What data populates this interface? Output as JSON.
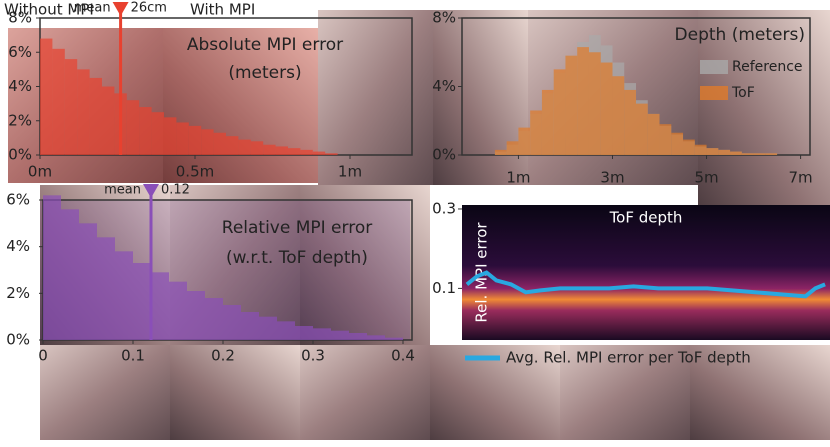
{
  "labels": {
    "without_mpi": "Without MPI",
    "with_mpi": "With MPI"
  },
  "chart_data": [
    {
      "type": "histogram",
      "title": "Absolute MPI error",
      "subtitle": "(meters)",
      "color": "#e8412f",
      "bins": [
        0,
        0.04,
        0.08,
        0.12,
        0.16,
        0.2,
        0.24,
        0.28,
        0.32,
        0.36,
        0.4,
        0.44,
        0.48,
        0.52,
        0.56,
        0.6,
        0.64,
        0.68,
        0.72,
        0.76,
        0.8,
        0.84,
        0.88,
        0.92,
        0.96
      ],
      "values": [
        6.8,
        6.2,
        5.6,
        5.0,
        4.5,
        4.0,
        3.6,
        3.2,
        2.8,
        2.5,
        2.2,
        1.9,
        1.7,
        1.5,
        1.3,
        1.1,
        0.9,
        0.8,
        0.6,
        0.5,
        0.4,
        0.3,
        0.2,
        0.1
      ],
      "xlim": [
        0,
        1.2
      ],
      "ylim": [
        0,
        8
      ],
      "xticks": [
        {
          "value": 0,
          "label": "0m"
        },
        {
          "value": 0.5,
          "label": "0.5m"
        },
        {
          "value": 1,
          "label": "1m"
        }
      ],
      "yticks": [
        {
          "value": 0,
          "label": "0%"
        },
        {
          "value": 2,
          "label": "2%"
        },
        {
          "value": 4,
          "label": "4%"
        },
        {
          "value": 6,
          "label": "6%"
        },
        {
          "value": 8,
          "label": "8%"
        }
      ],
      "mean_text": "mean",
      "mean": {
        "value": 0.26,
        "label": "26cm"
      }
    },
    {
      "type": "histogram",
      "title": "Depth (meters)",
      "bins": [
        0.5,
        0.75,
        1,
        1.25,
        1.5,
        1.75,
        2,
        2.25,
        2.5,
        2.75,
        3,
        3.25,
        3.5,
        3.75,
        4,
        4.25,
        4.5,
        4.75,
        5,
        5.25,
        5.5,
        5.75,
        6,
        6.25,
        6.5
      ],
      "series": [
        {
          "name": "Reference",
          "color": "#a9a9a9",
          "values": [
            0.2,
            0.6,
            1.4,
            2.4,
            3.6,
            4.8,
            5.8,
            6.6,
            7.0,
            6.4,
            5.4,
            4.2,
            3.2,
            2.4,
            1.7,
            1.2,
            0.8,
            0.5,
            0.4,
            0.3,
            0.2,
            0.1,
            0.1,
            0.1
          ]
        },
        {
          "name": "ToF",
          "color": "#e07b2a",
          "values": [
            0.3,
            0.8,
            1.6,
            2.6,
            3.8,
            5.0,
            5.8,
            6.3,
            6.0,
            5.4,
            4.6,
            3.8,
            3.0,
            2.4,
            1.8,
            1.3,
            0.9,
            0.6,
            0.4,
            0.3,
            0.2,
            0.1,
            0.1,
            0.1
          ]
        }
      ],
      "xlim": [
        -0.2,
        7.2
      ],
      "ylim": [
        0,
        8
      ],
      "xticks": [
        {
          "value": 1,
          "label": "1m"
        },
        {
          "value": 3,
          "label": "3m"
        },
        {
          "value": 5,
          "label": "5m"
        },
        {
          "value": 7,
          "label": "7m"
        }
      ],
      "yticks": [
        {
          "value": 0,
          "label": "0%"
        },
        {
          "value": 4,
          "label": "4%"
        },
        {
          "value": 8,
          "label": "8%"
        }
      ]
    },
    {
      "type": "histogram",
      "title": "Relative MPI error",
      "subtitle": "(w.r.t. ToF depth)",
      "color": "#8a4fb8",
      "bins": [
        0,
        0.02,
        0.04,
        0.06,
        0.08,
        0.1,
        0.12,
        0.14,
        0.16,
        0.18,
        0.2,
        0.22,
        0.24,
        0.26,
        0.28,
        0.3,
        0.32,
        0.34,
        0.36,
        0.38,
        0.4
      ],
      "values": [
        6.2,
        5.6,
        5.0,
        4.4,
        3.8,
        3.3,
        2.9,
        2.5,
        2.1,
        1.8,
        1.5,
        1.2,
        1.0,
        0.8,
        0.6,
        0.5,
        0.4,
        0.3,
        0.2,
        0.1
      ],
      "xlim": [
        0,
        0.41
      ],
      "ylim": [
        0,
        6
      ],
      "xticks": [
        0,
        0.1,
        0.2,
        0.3,
        0.4
      ],
      "yticks": [
        {
          "value": 0,
          "label": "0%"
        },
        {
          "value": 2,
          "label": "2%"
        },
        {
          "value": 4,
          "label": "4%"
        },
        {
          "value": 6,
          "label": "6%"
        }
      ],
      "mean_text": "mean",
      "mean": {
        "value": 0.12,
        "label": "0.12"
      }
    },
    {
      "type": "line",
      "xlabel": "ToF depth",
      "ylabel": "Rel. MPI error",
      "x": [
        0.1,
        0.3,
        0.5,
        0.7,
        1.0,
        1.3,
        1.6,
        2.0,
        2.5,
        3.0,
        3.5,
        4.0,
        4.5,
        5.0,
        5.5,
        6.0,
        6.5,
        7.0,
        7.2,
        7.4
      ],
      "series": [
        {
          "name": "Avg. Rel. MPI error per ToF depth",
          "color": "#29a8e0",
          "values": [
            0.11,
            0.13,
            0.14,
            0.12,
            0.11,
            0.09,
            0.095,
            0.1,
            0.1,
            0.1,
            0.105,
            0.1,
            0.1,
            0.1,
            0.095,
            0.09,
            0.085,
            0.08,
            0.1,
            0.11
          ]
        }
      ],
      "xlim": [
        0,
        7.5
      ],
      "ylim": [
        -0.03,
        0.31
      ],
      "yticks": [
        0.1,
        0.3
      ]
    }
  ]
}
